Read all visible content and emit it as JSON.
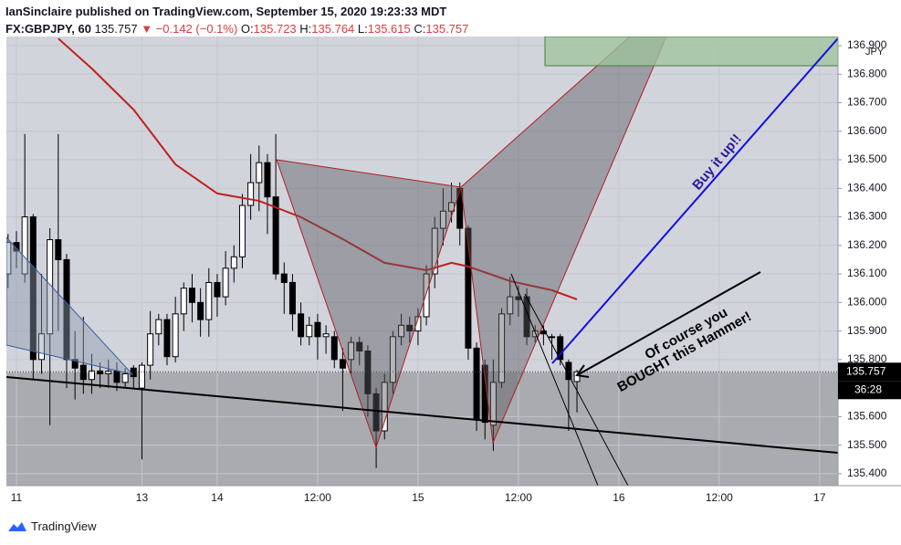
{
  "header": {
    "publisher": "IanSinclaire published on TradingView.com, September 15, 2020 19:23:33 MDT",
    "symbol": "FX:GBPJPY, 60",
    "price": "135.757",
    "change": "▼ −0.142 (−0.1%)",
    "o_label": "O:",
    "o": "135.723",
    "h_label": "H:",
    "h": "135.764",
    "l_label": "L:",
    "l": "135.615",
    "c_label": "C:",
    "c": "135.757"
  },
  "chart_data": {
    "type": "candlestick",
    "x": [
      -25,
      -24,
      -23,
      -22,
      -21,
      -20,
      -19,
      -18,
      -17,
      -16,
      -15,
      -14,
      -13,
      -12,
      -11,
      -10,
      -9,
      -8,
      -7,
      -6,
      -5,
      -4,
      -3,
      -2,
      -1,
      0,
      1,
      2,
      3,
      4,
      5,
      6,
      7,
      8,
      9,
      10,
      11,
      12,
      13,
      14,
      15,
      16,
      17,
      18,
      19,
      20,
      21,
      22,
      23,
      24,
      25,
      26,
      27,
      28,
      29,
      30,
      31,
      32,
      33,
      34,
      35,
      36,
      37,
      38,
      39,
      40,
      41,
      42,
      43
    ],
    "open": [
      136.1,
      136.21,
      136.1,
      136.3,
      135.8,
      135.89,
      136.22,
      136.15,
      135.8,
      135.78,
      135.73,
      135.76,
      135.75,
      135.76,
      135.72,
      135.77,
      135.7,
      135.78,
      135.89,
      135.94,
      135.81,
      135.96,
      136.05,
      136.0,
      135.94,
      136.07,
      136.02,
      136.12,
      136.16,
      136.34,
      136.42,
      136.49,
      136.37,
      136.1,
      136.07,
      135.96,
      135.88,
      135.93,
      135.88,
      135.88,
      135.8,
      135.8,
      135.86,
      135.83,
      135.68,
      135.55,
      135.72,
      135.88,
      135.92,
      135.9,
      135.95,
      136.1,
      136.26,
      136.32,
      136.4,
      136.26,
      135.84,
      135.78,
      135.57,
      135.72,
      135.96,
      136.02,
      136.02,
      135.88,
      135.9,
      135.88,
      135.88,
      135.79,
      135.723
    ],
    "high": [
      136.24,
      136.25,
      136.59,
      136.31,
      136.1,
      136.26,
      136.59,
      136.17,
      135.9,
      135.95,
      135.82,
      135.79,
      135.8,
      135.79,
      135.77,
      135.78,
      135.79,
      135.97,
      135.96,
      135.96,
      136.02,
      136.07,
      136.1,
      136.05,
      136.12,
      136.1,
      136.18,
      136.2,
      136.38,
      136.52,
      136.55,
      136.52,
      136.59,
      136.14,
      136.1,
      136.0,
      135.95,
      135.96,
      135.92,
      135.9,
      135.84,
      135.88,
      135.88,
      135.85,
      135.7,
      135.75,
      135.9,
      135.96,
      135.95,
      135.98,
      136.13,
      136.3,
      136.4,
      136.42,
      136.42,
      136.27,
      135.86,
      135.8,
      135.8,
      135.98,
      136.09,
      136.06,
      136.05,
      135.92,
      135.92,
      135.89,
      135.89,
      135.8,
      135.764
    ],
    "low": [
      136.05,
      136.12,
      136.07,
      135.73,
      135.75,
      135.57,
      135.9,
      135.7,
      135.66,
      135.68,
      135.68,
      135.7,
      135.7,
      135.69,
      135.7,
      135.7,
      135.45,
      135.73,
      135.85,
      135.78,
      135.79,
      135.9,
      135.93,
      135.88,
      135.88,
      135.95,
      135.99,
      136.07,
      136.12,
      136.29,
      136.32,
      136.24,
      136.08,
      135.96,
      135.9,
      135.85,
      135.85,
      135.8,
      135.82,
      135.77,
      135.62,
      135.75,
      135.78,
      135.6,
      135.42,
      135.52,
      135.68,
      135.85,
      135.86,
      135.85,
      135.92,
      136.05,
      136.2,
      136.28,
      136.2,
      135.8,
      135.55,
      135.52,
      135.48,
      135.7,
      135.92,
      135.95,
      135.85,
      135.86,
      135.85,
      135.8,
      135.78,
      135.55,
      135.615
    ],
    "close": [
      136.21,
      136.18,
      136.3,
      135.8,
      135.89,
      136.22,
      136.15,
      135.8,
      135.77,
      135.73,
      135.76,
      135.75,
      135.76,
      135.72,
      135.75,
      135.74,
      135.78,
      135.89,
      135.94,
      135.81,
      135.96,
      136.05,
      136.0,
      135.94,
      136.07,
      136.02,
      136.12,
      136.16,
      136.34,
      136.42,
      136.49,
      136.37,
      136.1,
      136.07,
      135.96,
      135.88,
      135.92,
      135.88,
      135.89,
      135.8,
      135.77,
      135.86,
      135.83,
      135.68,
      135.55,
      135.72,
      135.88,
      135.92,
      135.9,
      135.95,
      136.1,
      136.26,
      136.32,
      136.35,
      136.26,
      135.84,
      135.59,
      135.58,
      135.72,
      135.96,
      136.02,
      136.01,
      135.88,
      135.9,
      135.89,
      135.88,
      135.8,
      135.73,
      135.757
    ],
    "up_color": "#ffffff",
    "down_color": "#000000",
    "ma": {
      "color": "#c11e1e",
      "x": [
        -19,
        -15,
        -10,
        -5,
        0,
        5,
        10,
        15,
        20,
        25,
        28,
        30,
        35,
        40,
        43
      ],
      "values": [
        136.925,
        136.82,
        136.676,
        136.484,
        136.382,
        136.356,
        136.299,
        136.222,
        136.139,
        136.113,
        136.139,
        136.126,
        136.075,
        136.043,
        136.011
      ]
    },
    "xlim": [
      -25.2,
      74.2
    ],
    "xticks": [
      {
        "value": -24,
        "label": "11"
      },
      {
        "value": -9,
        "label": "13"
      },
      {
        "value": 0,
        "label": "14"
      },
      {
        "value": 12,
        "label": "12:00"
      },
      {
        "value": 24,
        "label": "15"
      },
      {
        "value": 36,
        "label": "12:00"
      },
      {
        "value": 48,
        "label": "16"
      },
      {
        "value": 60,
        "label": "12:00"
      },
      {
        "value": 72,
        "label": "17"
      }
    ],
    "ylim": [
      135.358,
      136.932
    ],
    "yticks": [
      {
        "value": 135.4,
        "label": "135.400"
      },
      {
        "value": 135.5,
        "label": "135.500"
      },
      {
        "value": 135.6,
        "label": "135.600"
      },
      {
        "value": 135.8,
        "label": "135.800"
      },
      {
        "value": 135.9,
        "label": "135.900"
      },
      {
        "value": 136.0,
        "label": "136.000"
      },
      {
        "value": 136.1,
        "label": "136.100"
      },
      {
        "value": 136.2,
        "label": "136.200"
      },
      {
        "value": 136.3,
        "label": "136.300"
      },
      {
        "value": 136.4,
        "label": "136.400"
      },
      {
        "value": 136.5,
        "label": "136.500"
      },
      {
        "value": 136.6,
        "label": "136.600"
      },
      {
        "value": 136.7,
        "label": "136.700"
      },
      {
        "value": 136.8,
        "label": "136.800"
      },
      {
        "value": 136.9,
        "label": "136.900"
      }
    ],
    "grid": true,
    "currency": "JPY",
    "last_price_label": "135.757",
    "countdown": "36:28",
    "annotations": [
      "Buy it up!!",
      "Of course you",
      "BOUGHT this Hammer!"
    ]
  },
  "footer": {
    "brand": "TradingView"
  }
}
